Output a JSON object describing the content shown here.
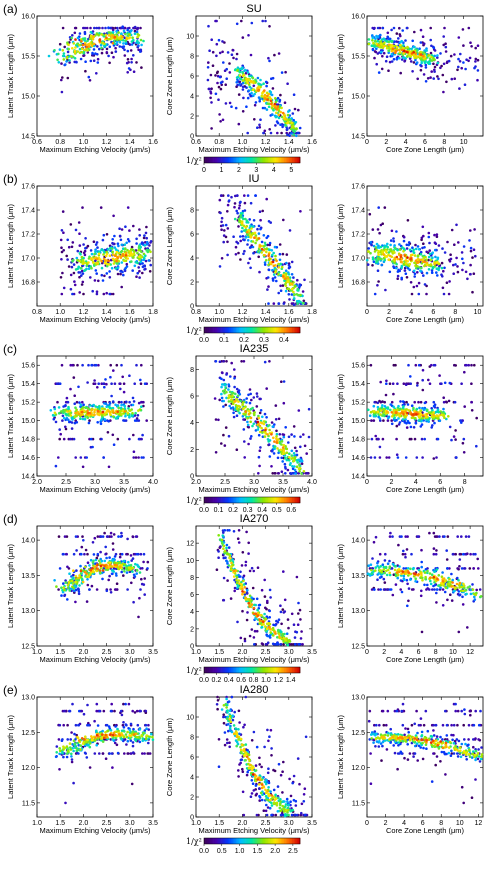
{
  "chart_data": [
    {
      "label": "(a)",
      "title": "SU",
      "colorbar": {
        "label": "1/χ²",
        "ticks": [
          "0",
          "1",
          "2",
          "3",
          "4",
          "5"
        ],
        "range": [
          0,
          5.5
        ]
      },
      "panels": [
        {
          "type": "scatter",
          "xlabel": "Maximum Etching Velocity (μm/s)",
          "ylabel": "Latent Track Length (μm)",
          "xlim": [
            0.6,
            1.6
          ],
          "ylim": [
            14.5,
            16.0
          ],
          "xticks": [
            "0.6",
            "0.8",
            "1.0",
            "1.2",
            "1.4",
            "1.6"
          ],
          "yticks": [
            "14.5",
            "15.0",
            "15.5",
            "16.0"
          ],
          "pattern": {
            "kind": "band",
            "x": [
              0.82,
              1.45
            ],
            "y": [
              15.45,
              15.72
            ],
            "ycurve": 0.12,
            "sx": 0.28,
            "sy": 0.06,
            "rx": [
              0.8,
              1.5
            ],
            "ry": [
              15.05,
              15.85
            ]
          }
        },
        {
          "type": "scatter",
          "xlabel": "Maximum Etching Velocity (μm/s)",
          "ylabel": "Core Zone Length (μm)",
          "xlim": [
            0.6,
            1.6
          ],
          "ylim": [
            0,
            12
          ],
          "xticks": [
            "0.6",
            "0.8",
            "1.0",
            "1.2",
            "1.4",
            "1.6"
          ],
          "yticks": [
            "0",
            "2",
            "4",
            "6",
            "8",
            "10"
          ],
          "pattern": {
            "kind": "band",
            "x": [
              0.95,
              1.47
            ],
            "y": [
              6.5,
              0.4
            ],
            "ycurve": 0.4,
            "sx": 0.06,
            "sy": 0.6,
            "rx": [
              0.7,
              1.5
            ],
            "ry": [
              0.3,
              11.5
            ]
          }
        },
        {
          "type": "scatter",
          "xlabel": "Core Zone Length (μm)",
          "ylabel": "Latent Track Length (μm)",
          "xlim": [
            0,
            12
          ],
          "ylim": [
            14.5,
            16.0
          ],
          "xticks": [
            "0",
            "2",
            "4",
            "6",
            "8",
            "10"
          ],
          "yticks": [
            "14.5",
            "15.0",
            "15.5",
            "16.0"
          ],
          "pattern": {
            "kind": "band",
            "x": [
              0.5,
              7
            ],
            "y": [
              15.68,
              15.45
            ],
            "ycurve": 0.0,
            "sx": 1.5,
            "sy": 0.06,
            "rx": [
              0.3,
              11.5
            ],
            "ry": [
              15.05,
              15.85
            ]
          }
        }
      ]
    },
    {
      "label": "(b)",
      "title": "IU",
      "colorbar": {
        "label": "1/χ²",
        "ticks": [
          "0.0",
          "0.1",
          "0.2",
          "0.3",
          "0.4"
        ],
        "range": [
          0,
          0.48
        ]
      },
      "panels": [
        {
          "type": "scatter",
          "xlabel": "Maximum Etching Velocity (μm/s)",
          "ylabel": "Latent Track Length (μm)",
          "xlim": [
            0.8,
            1.8
          ],
          "ylim": [
            16.6,
            17.6
          ],
          "xticks": [
            "0.8",
            "1.0",
            "1.2",
            "1.4",
            "1.6",
            "1.8"
          ],
          "yticks": [
            "16.8",
            "17.0",
            "17.2",
            "17.4",
            "17.6"
          ],
          "pattern": {
            "kind": "band",
            "x": [
              1.15,
              1.75
            ],
            "y": [
              16.95,
              17.05
            ],
            "ycurve": 0.0,
            "sx": 0.2,
            "sy": 0.06,
            "rx": [
              1.0,
              1.78
            ],
            "ry": [
              16.7,
              17.42
            ]
          }
        },
        {
          "type": "scatter",
          "xlabel": "Maximum Etching Velocity (μm/s)",
          "ylabel": "Core Zone Length (μm)",
          "xlim": [
            0.8,
            1.8
          ],
          "ylim": [
            0,
            10
          ],
          "xticks": [
            "0.8",
            "1.0",
            "1.2",
            "1.4",
            "1.6",
            "1.8"
          ],
          "yticks": [
            "0",
            "2",
            "4",
            "6",
            "8"
          ],
          "pattern": {
            "kind": "band",
            "x": [
              1.15,
              1.72
            ],
            "y": [
              7.5,
              0.3
            ],
            "ycurve": 0.2,
            "sx": 0.05,
            "sy": 0.6,
            "rx": [
              1.0,
              1.75
            ],
            "ry": [
              0.2,
              9.2
            ]
          }
        },
        {
          "type": "scatter",
          "xlabel": "Core Zone Length (μm)",
          "ylabel": "Latent Track Length (μm)",
          "xlim": [
            0,
            10.5
          ],
          "ylim": [
            16.6,
            17.6
          ],
          "xticks": [
            "0",
            "2",
            "4",
            "6",
            "8",
            "10"
          ],
          "yticks": [
            "16.8",
            "17.0",
            "17.2",
            "17.4",
            "17.6"
          ],
          "pattern": {
            "kind": "band",
            "x": [
              0.3,
              6.5
            ],
            "y": [
              17.05,
              16.95
            ],
            "ycurve": 0.0,
            "sx": 1.5,
            "sy": 0.06,
            "rx": [
              0.1,
              9.8
            ],
            "ry": [
              16.7,
              17.42
            ]
          }
        }
      ]
    },
    {
      "label": "(c)",
      "title": "IA235",
      "colorbar": {
        "label": "1/χ²",
        "ticks": [
          "0.0",
          "0.1",
          "0.2",
          "0.3",
          "0.4",
          "0.5",
          "0.6"
        ],
        "range": [
          0,
          0.66
        ]
      },
      "panels": [
        {
          "type": "scatter",
          "xlabel": "Maximum Etching Velocity (μm/s)",
          "ylabel": "Latent Track Length (μm)",
          "xlim": [
            2.0,
            4.0
          ],
          "ylim": [
            14.4,
            15.7
          ],
          "xticks": [
            "2.0",
            "2.5",
            "3.0",
            "3.5",
            "4.0"
          ],
          "yticks": [
            "14.4",
            "14.6",
            "14.8",
            "15.0",
            "15.2",
            "15.4",
            "15.6"
          ],
          "pattern": {
            "kind": "band",
            "x": [
              2.35,
              3.65
            ],
            "y": [
              15.08,
              15.1
            ],
            "ycurve": 0.0,
            "sx": 0.4,
            "sy": 0.05,
            "rx": [
              2.3,
              3.9
            ],
            "ry": [
              14.5,
              15.6
            ],
            "levels": [
              14.6,
              14.8,
              15.0,
              15.2,
              15.4,
              15.6
            ]
          }
        },
        {
          "type": "scatter",
          "xlabel": "Maximum Etching Velocity (μm/s)",
          "ylabel": "Core Zone Length (μm)",
          "xlim": [
            2.0,
            4.0
          ],
          "ylim": [
            0,
            9
          ],
          "xticks": [
            "2.0",
            "2.5",
            "3.0",
            "3.5",
            "4.0"
          ],
          "yticks": [
            "0",
            "2",
            "4",
            "6",
            "8"
          ],
          "pattern": {
            "kind": "band",
            "x": [
              2.45,
              3.85
            ],
            "y": [
              6.5,
              0.3
            ],
            "ycurve": 0.3,
            "sx": 0.1,
            "sy": 0.5,
            "rx": [
              2.3,
              3.95
            ],
            "ry": [
              0.2,
              8.6
            ]
          }
        },
        {
          "type": "scatter",
          "xlabel": "Core Zone Length (μm)",
          "ylabel": "Latent Track Length (μm)",
          "xlim": [
            0,
            9.5
          ],
          "ylim": [
            14.4,
            15.7
          ],
          "xticks": [
            "0",
            "2",
            "4",
            "6",
            "8"
          ],
          "yticks": [
            "14.4",
            "14.6",
            "14.8",
            "15.0",
            "15.2",
            "15.4",
            "15.6"
          ],
          "pattern": {
            "kind": "band",
            "x": [
              0.5,
              6.5
            ],
            "y": [
              15.1,
              15.05
            ],
            "ycurve": 0.0,
            "sx": 1.5,
            "sy": 0.05,
            "rx": [
              0.2,
              9.0
            ],
            "ry": [
              14.5,
              15.6
            ],
            "levels": [
              14.6,
              14.8,
              15.0,
              15.2,
              15.4,
              15.6
            ]
          }
        }
      ]
    },
    {
      "label": "(d)",
      "title": "IA270",
      "colorbar": {
        "label": "1/χ²",
        "ticks": [
          "0.0",
          "0.2",
          "0.4",
          "0.6",
          "0.8",
          "1.0",
          "1.2",
          "1.4"
        ],
        "range": [
          0,
          1.55
        ]
      },
      "panels": [
        {
          "type": "scatter",
          "xlabel": "Maximum Etching Velocity (μm/s)",
          "ylabel": "Latent Track Length (μm)",
          "xlim": [
            1.0,
            3.5
          ],
          "ylim": [
            12.5,
            14.2
          ],
          "xticks": [
            "1.0",
            "1.5",
            "2.0",
            "2.5",
            "3.0",
            "3.5"
          ],
          "yticks": [
            "12.5",
            "13.0",
            "13.5",
            "14.0"
          ],
          "pattern": {
            "kind": "band",
            "x": [
              1.6,
              3.05
            ],
            "y": [
              13.3,
              13.58
            ],
            "ycurve": 0.18,
            "sx": 0.45,
            "sy": 0.06,
            "rx": [
              1.45,
              3.4
            ],
            "ry": [
              12.7,
              14.1
            ],
            "levels": [
              13.3,
              13.6,
              13.8,
              14.05
            ]
          }
        },
        {
          "type": "scatter",
          "xlabel": "Maximum Etching Velocity (μm/s)",
          "ylabel": "Core Zone Length (μm)",
          "xlim": [
            1.0,
            3.5
          ],
          "ylim": [
            0,
            14
          ],
          "xticks": [
            "1.0",
            "1.5",
            "2.0",
            "2.5",
            "3.0",
            "3.5"
          ],
          "yticks": [
            "0",
            "2",
            "4",
            "6",
            "8",
            "10",
            "12"
          ],
          "pattern": {
            "kind": "band",
            "x": [
              1.5,
              3.05
            ],
            "y": [
              13.0,
              0.3
            ],
            "ycurve": -2.5,
            "sx": 0.1,
            "sy": 0.6,
            "rx": [
              1.45,
              3.3
            ],
            "ry": [
              0.2,
              13.5
            ]
          }
        },
        {
          "type": "scatter",
          "xlabel": "Core Zone Length (μm)",
          "ylabel": "Latent Track Length (μm)",
          "xlim": [
            0,
            13.5
          ],
          "ylim": [
            12.5,
            14.2
          ],
          "xticks": [
            "0",
            "2",
            "4",
            "6",
            "8",
            "10",
            "12"
          ],
          "yticks": [
            "12.5",
            "13.0",
            "13.5",
            "14.0"
          ],
          "pattern": {
            "kind": "band",
            "x": [
              0.5,
              13
            ],
            "y": [
              13.58,
              13.22
            ],
            "ycurve": 0.1,
            "sx": 2.0,
            "sy": 0.06,
            "rx": [
              0.2,
              13.2
            ],
            "ry": [
              12.7,
              14.1
            ],
            "levels": [
              13.3,
              13.6,
              13.8,
              14.05
            ]
          }
        }
      ]
    },
    {
      "label": "(e)",
      "title": "IA280",
      "colorbar": {
        "label": "1/χ²",
        "ticks": [
          "0.0",
          "0.5",
          "1.0",
          "1.5",
          "2.0",
          "2.5"
        ],
        "range": [
          0,
          2.7
        ]
      },
      "panels": [
        {
          "type": "scatter",
          "xlabel": "Maximum Etching Velocity (μm/s)",
          "ylabel": "Latent Track Length (μm)",
          "xlim": [
            1.0,
            3.5
          ],
          "ylim": [
            11.3,
            13.0
          ],
          "xticks": [
            "1.0",
            "1.5",
            "2.0",
            "2.5",
            "3.0",
            "3.5"
          ],
          "yticks": [
            "11.5",
            "12.0",
            "12.5",
            "13.0"
          ],
          "pattern": {
            "kind": "band",
            "x": [
              1.55,
              3.4
            ],
            "y": [
              12.2,
              12.42
            ],
            "ycurve": 0.15,
            "sx": 0.5,
            "sy": 0.05,
            "rx": [
              1.45,
              3.45
            ],
            "ry": [
              11.5,
              12.9
            ],
            "levels": [
              12.2,
              12.4,
              12.6,
              12.8
            ]
          }
        },
        {
          "type": "scatter",
          "xlabel": "Maximum Etching Velocity (μm/s)",
          "ylabel": "Core Zone Length (μm)",
          "xlim": [
            1.0,
            3.5
          ],
          "ylim": [
            0,
            12
          ],
          "xticks": [
            "1.0",
            "1.5",
            "2.0",
            "2.5",
            "3.0",
            "3.5"
          ],
          "yticks": [
            "0",
            "2",
            "4",
            "6",
            "8",
            "10"
          ],
          "pattern": {
            "kind": "band",
            "x": [
              1.6,
              3.05
            ],
            "y": [
              11.5,
              0.3
            ],
            "ycurve": -2.0,
            "sx": 0.1,
            "sy": 0.6,
            "rx": [
              1.45,
              3.4
            ],
            "ry": [
              0.2,
              12.0
            ]
          }
        },
        {
          "type": "scatter",
          "xlabel": "Core Zone Length (μm)",
          "ylabel": "Latent Track Length (μm)",
          "xlim": [
            0,
            12.5
          ],
          "ylim": [
            11.3,
            13.0
          ],
          "xticks": [
            "0",
            "2",
            "4",
            "6",
            "8",
            "10",
            "12"
          ],
          "yticks": [
            "11.5",
            "12.0",
            "12.5",
            "13.0"
          ],
          "pattern": {
            "kind": "band",
            "x": [
              0.5,
              12
            ],
            "y": [
              12.42,
              12.15
            ],
            "ycurve": 0.1,
            "sx": 2.0,
            "sy": 0.05,
            "rx": [
              0.2,
              12.3
            ],
            "ry": [
              11.5,
              12.9
            ],
            "levels": [
              12.2,
              12.4,
              12.6,
              12.8
            ]
          }
        }
      ]
    }
  ]
}
